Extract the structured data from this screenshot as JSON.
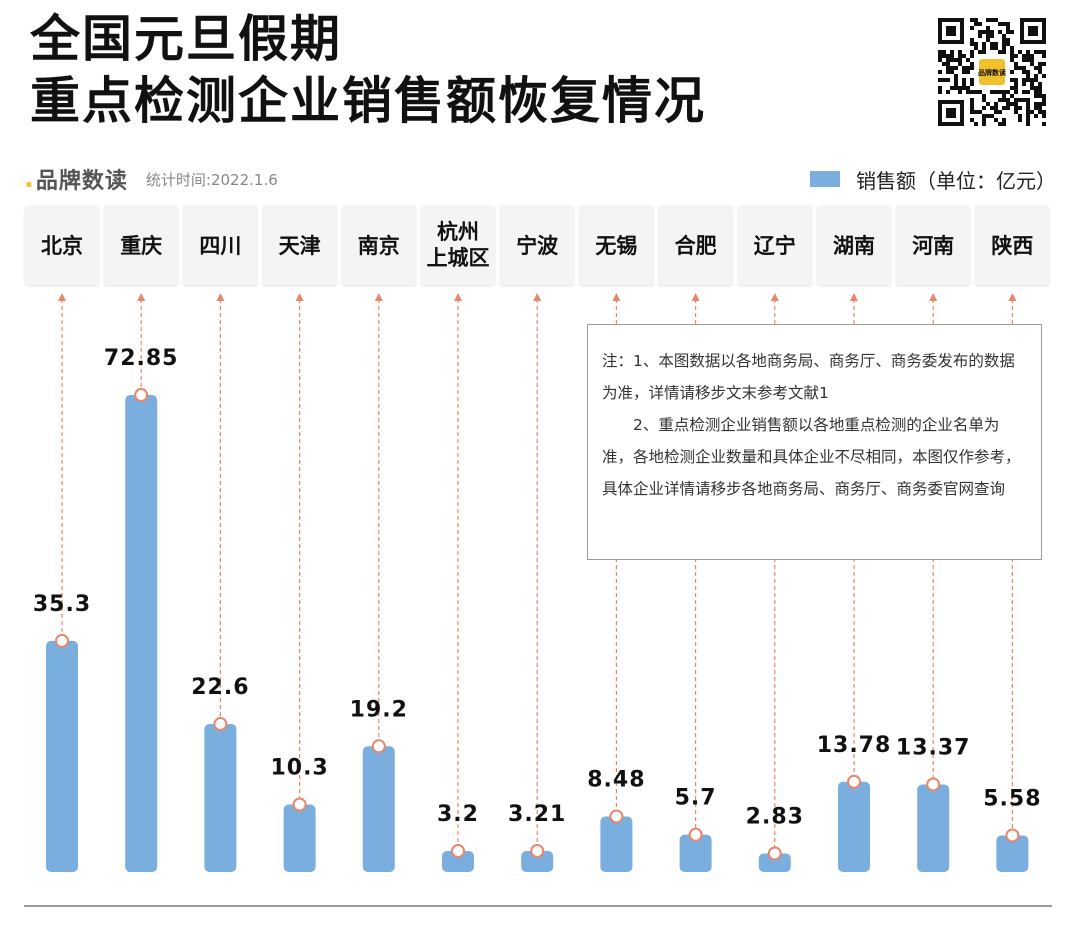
{
  "header": {
    "title_line1": "全国元旦假期",
    "title_line2": "重点检测企业销售额恢复情况"
  },
  "brand": {
    "name": "品牌数读",
    "stat_time": "统计时间:2022.1.6"
  },
  "qr_badge": "品牌数读",
  "colors": {
    "bar": "#7aaedf",
    "leader": "#e8866a",
    "marker": "#e8866a"
  },
  "chart_data": {
    "type": "bar",
    "categories": [
      "北京",
      "重庆",
      "四川",
      "天津",
      "南京",
      "杭州\n上城区",
      "宁波",
      "无锡",
      "合肥",
      "辽宁",
      "湖南",
      "河南",
      "陕西"
    ],
    "series": [
      {
        "name": "销售额（单位：亿元）",
        "values": [
          35.3,
          72.85,
          22.6,
          10.3,
          19.2,
          3.2,
          3.21,
          8.48,
          5.7,
          2.83,
          13.78,
          13.37,
          5.58
        ]
      }
    ],
    "value_labels": [
      "35.3",
      "72.85",
      "22.6",
      "10.3",
      "19.2",
      "3.2",
      "3.21",
      "8.48",
      "5.7",
      "2.83",
      "13.78",
      "13.37",
      "5.58"
    ],
    "legend": "top-right",
    "grid": false,
    "ylim": [
      0,
      75
    ]
  },
  "note": {
    "line1": "注：1、本图数据以各地商务局、商务厅、商务委发布的数据为准，详情请移步文末参考文献1",
    "line2": "2、重点检测企业销售额以各地重点检测的企业名单为准，各地检测企业数量和具体企业不尽相同，本图仅作参考，具体企业详情请移步各地商务局、商务厅、商务委官网查询"
  }
}
